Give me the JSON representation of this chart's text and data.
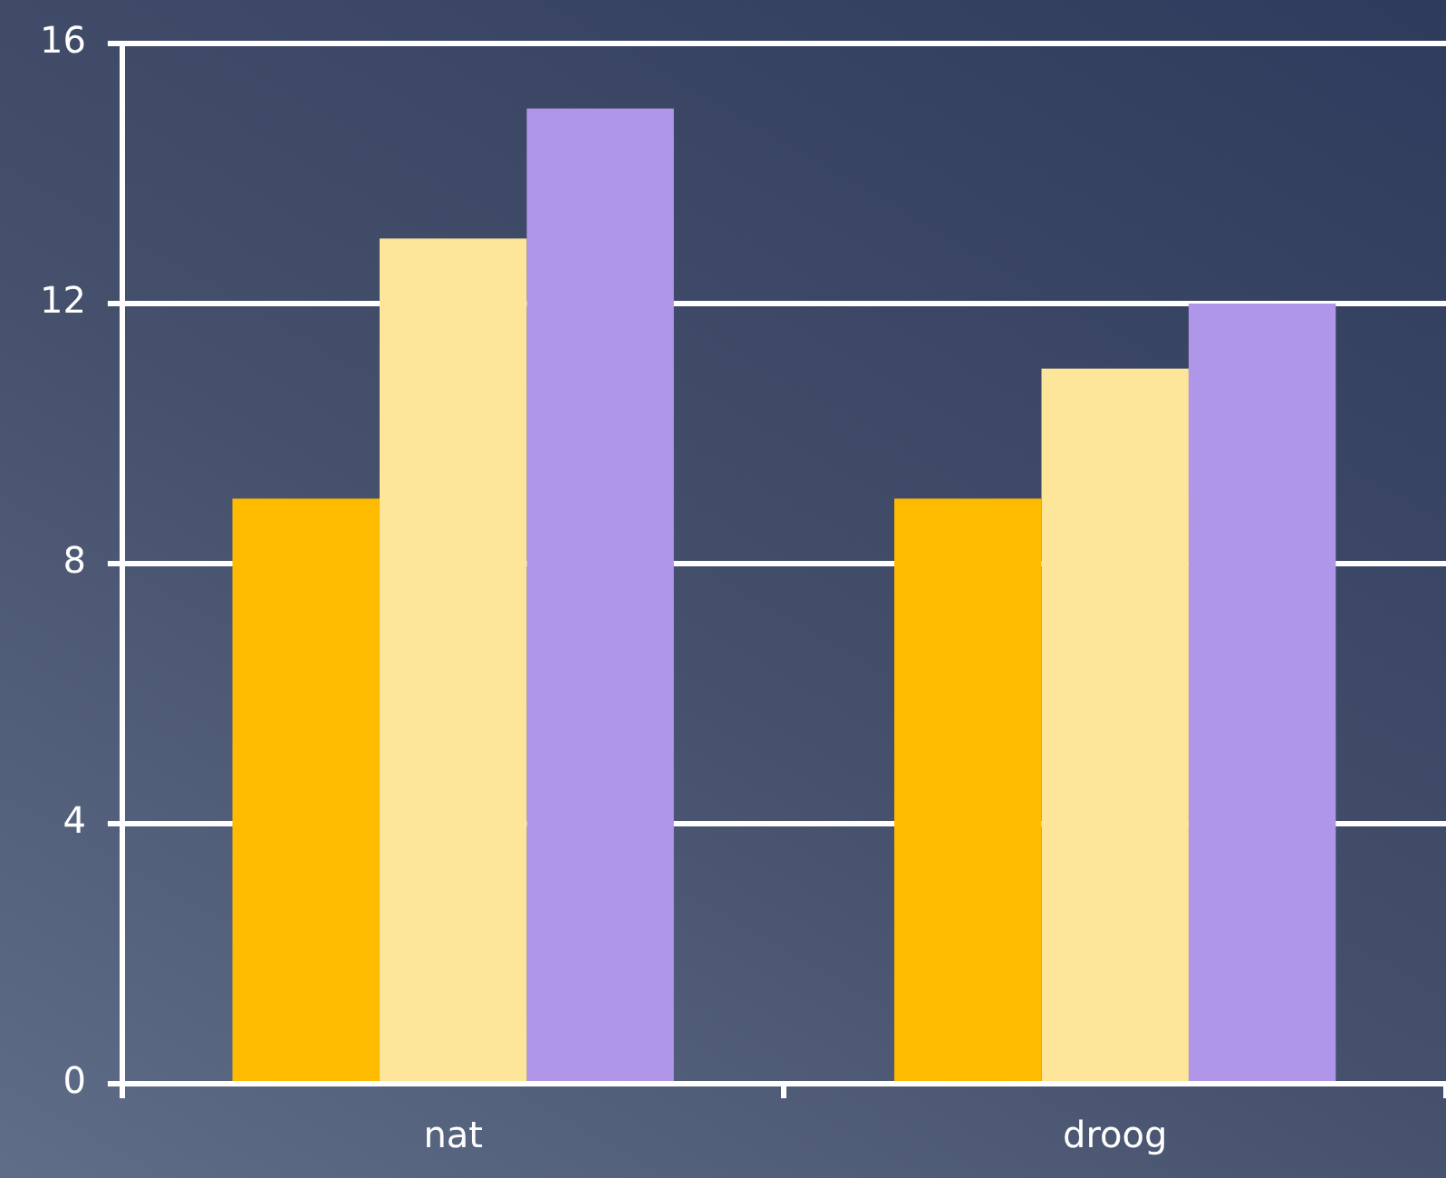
{
  "chart_data": {
    "type": "bar",
    "categories": [
      "nat",
      "droog"
    ],
    "series": [
      {
        "color": "#ffbb00",
        "values": [
          9,
          9
        ]
      },
      {
        "color": "#fde699",
        "values": [
          13,
          11
        ]
      },
      {
        "color": "#b096e8",
        "values": [
          15,
          12
        ]
      }
    ],
    "ylim": [
      0,
      16
    ],
    "yticks": [
      0,
      4,
      8,
      12,
      16
    ],
    "grid": "y",
    "legend": false
  }
}
